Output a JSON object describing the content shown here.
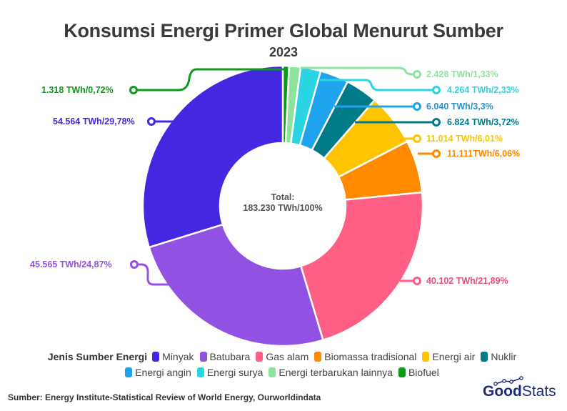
{
  "header": {
    "title": "Konsumsi Energi Primer Global Menurut Sumber",
    "subtitle": "2023"
  },
  "center": {
    "line1": "Total:",
    "line2": "183.230 TWh/100%"
  },
  "legend": {
    "title": "Jenis Sumber Energi",
    "row1": [
      {
        "label": "Minyak",
        "color": "#4328E0"
      },
      {
        "label": "Batubara",
        "color": "#9152E3"
      },
      {
        "label": "Gas alam",
        "color": "#FF5E85"
      },
      {
        "label": "Biomassa tradisional",
        "color": "#FF8A00"
      },
      {
        "label": "Energi air",
        "color": "#FFC400"
      },
      {
        "label": "Nuklir",
        "color": "#007A87"
      }
    ],
    "row2": [
      {
        "label": "Energi angin",
        "color": "#1EA3EC"
      },
      {
        "label": "Energi surya",
        "color": "#2BD4E3"
      },
      {
        "label": "Energi terbarukan lainnya",
        "color": "#8DE39E"
      },
      {
        "label": "Biofuel",
        "color": "#0A9B1A"
      }
    ]
  },
  "labels": {
    "biofuel": "1.318 TWh/0,72%",
    "minyak": "54.564 TWh/29,78%",
    "batubara": "45.565 TWh/24,87%",
    "gas_alam": "40.102 TWh/21,89%",
    "terbarukan": "2.428 TWh/1,33%",
    "surya": "4.264 TWh/2,33%",
    "angin": "6.040 TWh/3,3%",
    "nuklir": "6.824 TWh/3,72%",
    "air": "11.014 TWh/6,01%",
    "biomassa": "11.111TWh/6,06%"
  },
  "footer": {
    "source": "Sumber: Energy Institute-Statistical Review of World Energy, Ourworldindata",
    "logo_good": "Good",
    "logo_stats": "Stats"
  },
  "chart_data": {
    "type": "pie",
    "variant": "donut",
    "title": "Konsumsi Energi Primer Global Menurut Sumber",
    "subtitle": "2023",
    "unit": "TWh",
    "total": 183230,
    "center_label": "Total: 183.230 TWh/100%",
    "legend_title": "Jenis Sumber Energi",
    "legend_position": "bottom",
    "categories": [
      "Biofuel",
      "Energi terbarukan lainnya",
      "Energi surya",
      "Energi angin",
      "Nuklir",
      "Energi air",
      "Biomassa tradisional",
      "Gas alam",
      "Batubara",
      "Minyak"
    ],
    "values": [
      1318,
      2428,
      4264,
      6040,
      6824,
      11014,
      11111,
      40102,
      45565,
      54564
    ],
    "percentages": [
      0.72,
      1.33,
      2.33,
      3.3,
      3.72,
      6.01,
      6.06,
      21.89,
      24.87,
      29.78
    ],
    "colors": [
      "#0A9B1A",
      "#8DE39E",
      "#2BD4E3",
      "#1EA3EC",
      "#007A87",
      "#FFC400",
      "#FF8A00",
      "#FF5E85",
      "#9152E3",
      "#4328E0"
    ],
    "data_labels": [
      "1.318 TWh/0,72%",
      "2.428 TWh/1,33%",
      "4.264 TWh/2,33%",
      "6.040 TWh/3,3%",
      "6.824 TWh/3,72%",
      "11.014 TWh/6,01%",
      "11.111TWh/6,06%",
      "40.102 TWh/21,89%",
      "45.565 TWh/24,87%",
      "54.564 TWh/29,78%"
    ]
  }
}
